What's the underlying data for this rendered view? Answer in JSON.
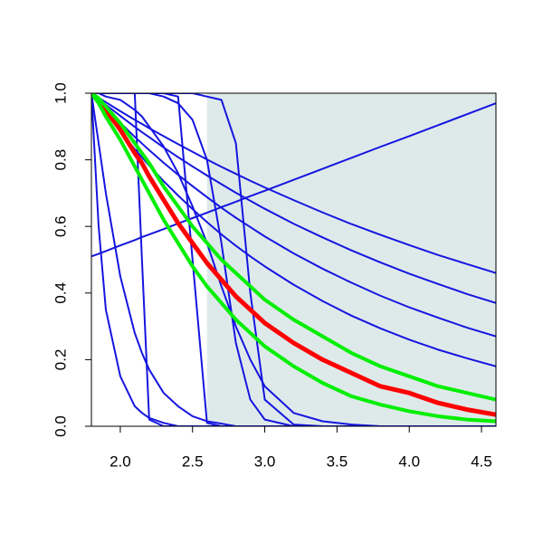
{
  "chart_data": {
    "type": "line",
    "xlim": [
      1.8,
      4.6
    ],
    "ylim": [
      0,
      1
    ],
    "xticks": [
      {
        "value": 2,
        "label": "2.0"
      },
      {
        "value": 2.5,
        "label": "2.5"
      },
      {
        "value": 3,
        "label": "3.0"
      },
      {
        "value": 3.5,
        "label": "3.5"
      },
      {
        "value": 4,
        "label": "4.0"
      },
      {
        "value": 4.5,
        "label": "4.5"
      }
    ],
    "yticks": [
      {
        "value": 0,
        "label": "0.0"
      },
      {
        "value": 0.2,
        "label": "0.2"
      },
      {
        "value": 0.4,
        "label": "0.4"
      },
      {
        "value": 0.6,
        "label": "0.6"
      },
      {
        "value": 0.8,
        "label": "0.8"
      },
      {
        "value": 1,
        "label": "1.0"
      }
    ],
    "shaded_region": {
      "xlim": [
        2.6,
        4.6
      ],
      "color": "#deeaea"
    },
    "x": [
      1.8,
      1.85,
      1.9,
      2.0,
      2.1,
      2.15,
      2.2,
      2.3,
      2.4,
      2.5,
      2.6,
      2.7,
      2.8,
      2.9,
      3.0,
      3.2,
      3.4,
      3.6,
      3.8,
      4.0,
      4.2,
      4.4,
      4.6
    ],
    "series": [
      {
        "color": "#1515e0",
        "line_width": 2,
        "values": [
          0.51,
          0.518,
          0.526,
          0.543,
          0.559,
          0.568,
          0.576,
          0.592,
          0.609,
          0.625,
          0.641,
          0.658,
          0.674,
          0.691,
          0.707,
          0.74,
          0.773,
          0.806,
          0.839,
          0.871,
          0.904,
          0.937,
          0.97
        ]
      },
      {
        "color": "#1515e0",
        "line_width": 2,
        "values": [
          1,
          0.986,
          0.973,
          0.946,
          0.92,
          0.908,
          0.895,
          0.871,
          0.847,
          0.824,
          0.801,
          0.779,
          0.758,
          0.737,
          0.717,
          0.679,
          0.642,
          0.607,
          0.575,
          0.544,
          0.514,
          0.487,
          0.46
        ]
      },
      {
        "color": "#1515e0",
        "line_width": 2,
        "values": [
          1,
          0.982,
          0.965,
          0.932,
          0.899,
          0.883,
          0.868,
          0.837,
          0.808,
          0.78,
          0.753,
          0.727,
          0.701,
          0.677,
          0.653,
          0.608,
          0.567,
          0.528,
          0.492,
          0.458,
          0.427,
          0.397,
          0.37
        ]
      },
      {
        "color": "#1515e0",
        "line_width": 2,
        "values": [
          1,
          0.977,
          0.954,
          0.911,
          0.869,
          0.849,
          0.829,
          0.791,
          0.755,
          0.721,
          0.688,
          0.656,
          0.626,
          0.598,
          0.57,
          0.519,
          0.473,
          0.431,
          0.392,
          0.357,
          0.326,
          0.296,
          0.27
        ]
      },
      {
        "color": "#1515e0",
        "line_width": 2,
        "values": [
          1,
          0.97,
          0.941,
          0.885,
          0.832,
          0.807,
          0.783,
          0.736,
          0.693,
          0.652,
          0.613,
          0.576,
          0.542,
          0.51,
          0.48,
          0.425,
          0.376,
          0.332,
          0.294,
          0.26,
          0.23,
          0.204,
          0.18
        ]
      },
      {
        "color": "#1515e0",
        "line_width": 2,
        "values": [
          1,
          1,
          1,
          1,
          1,
          0.5,
          0.02,
          0,
          0,
          0,
          0,
          0,
          0,
          0,
          0,
          0,
          0,
          0,
          0,
          0,
          0,
          0,
          0
        ]
      },
      {
        "color": "#1515e0",
        "line_width": 2,
        "values": [
          1,
          1,
          1,
          1,
          1,
          1,
          1,
          1,
          0.99,
          0.5,
          0.01,
          0,
          0,
          0,
          0,
          0,
          0,
          0,
          0,
          0,
          0,
          0,
          0
        ]
      },
      {
        "color": "#1515e0",
        "line_width": 2,
        "values": [
          1,
          1,
          1,
          1,
          1,
          1,
          1,
          0.99,
          0.97,
          0.92,
          0.8,
          0.55,
          0.25,
          0.08,
          0.02,
          0,
          0,
          0,
          0,
          0,
          0,
          0,
          0
        ]
      },
      {
        "color": "#1515e0",
        "line_width": 2,
        "values": [
          1,
          1,
          0.99,
          0.98,
          0.95,
          0.93,
          0.9,
          0.84,
          0.76,
          0.66,
          0.55,
          0.42,
          0.3,
          0.2,
          0.12,
          0.04,
          0.015,
          0.005,
          0,
          0,
          0,
          0,
          0
        ]
      },
      {
        "color": "#1515e0",
        "line_width": 2,
        "values": [
          1,
          0.6,
          0.35,
          0.15,
          0.06,
          0.04,
          0.025,
          0.01,
          0,
          0,
          0,
          0,
          0,
          0,
          0,
          0,
          0,
          0,
          0,
          0,
          0,
          0,
          0
        ]
      },
      {
        "color": "#1515e0",
        "line_width": 2,
        "values": [
          1,
          0.85,
          0.7,
          0.45,
          0.28,
          0.22,
          0.17,
          0.1,
          0.06,
          0.03,
          0.015,
          0.008,
          0,
          0,
          0,
          0,
          0,
          0,
          0,
          0,
          0,
          0,
          0
        ]
      },
      {
        "color": "#1515e0",
        "line_width": 2,
        "values": [
          1,
          1,
          1,
          1,
          1,
          1,
          1,
          1,
          1,
          1,
          0.99,
          0.98,
          0.85,
          0.4,
          0.08,
          0.005,
          0,
          0,
          0,
          0,
          0,
          0,
          0
        ]
      },
      {
        "color": "#ff0000",
        "line_width": 5,
        "values": [
          1,
          0.98,
          0.95,
          0.89,
          0.82,
          0.79,
          0.75,
          0.68,
          0.61,
          0.55,
          0.49,
          0.44,
          0.39,
          0.35,
          0.31,
          0.25,
          0.2,
          0.16,
          0.12,
          0.1,
          0.07,
          0.05,
          0.035
        ]
      },
      {
        "color": "#00ee00",
        "line_width": 4,
        "values": [
          1,
          0.985,
          0.96,
          0.91,
          0.85,
          0.82,
          0.79,
          0.72,
          0.66,
          0.6,
          0.55,
          0.5,
          0.46,
          0.42,
          0.38,
          0.32,
          0.27,
          0.22,
          0.18,
          0.15,
          0.12,
          0.1,
          0.08
        ]
      },
      {
        "color": "#00ee00",
        "line_width": 4,
        "values": [
          1,
          0.97,
          0.93,
          0.86,
          0.78,
          0.74,
          0.7,
          0.62,
          0.55,
          0.48,
          0.42,
          0.37,
          0.32,
          0.28,
          0.24,
          0.18,
          0.13,
          0.09,
          0.065,
          0.045,
          0.03,
          0.02,
          0.015
        ]
      }
    ]
  }
}
